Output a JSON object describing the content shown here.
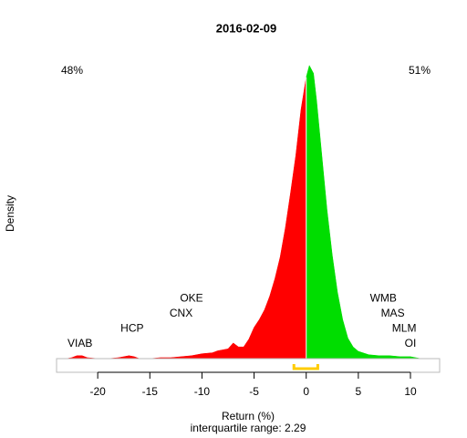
{
  "chart_data": {
    "type": "density",
    "title": "2016-02-09",
    "x_label": "Return (%)",
    "y_label": "Density",
    "subtitle": "interquartile range: 2.29",
    "xlim": [
      -23.95,
      12.8
    ],
    "ylim": [
      -0.014,
      0.311
    ],
    "xticks": [
      -20,
      -15,
      -10,
      -5,
      0,
      5,
      10
    ],
    "series": [
      {
        "color": "#ff0000",
        "x": [
          -23,
          -22.5,
          -22,
          -21.5,
          -21,
          -20,
          -19,
          -18,
          -17.5,
          -17,
          -16.5,
          -16,
          -15,
          -14,
          -13,
          -12,
          -11,
          -10,
          -9,
          -8.5,
          -8,
          -7.5,
          -7,
          -6.5,
          -6,
          -5.5,
          -5,
          -4.5,
          -4,
          -3.5,
          -3,
          -2.5,
          -2,
          -1.5,
          -1,
          -0.5,
          0
        ],
        "values": [
          0,
          0.001,
          0.003,
          0.003,
          0.001,
          0,
          0,
          0.001,
          0.002,
          0.003,
          0.002,
          0,
          0,
          0.001,
          0.001,
          0.002,
          0.003,
          0.005,
          0.006,
          0.008,
          0.009,
          0.01,
          0.016,
          0.012,
          0.012,
          0.02,
          0.032,
          0.04,
          0.05,
          0.064,
          0.082,
          0.104,
          0.134,
          0.17,
          0.208,
          0.255,
          0.288
        ]
      },
      {
        "color": "#00dd00",
        "x": [
          0,
          0.3,
          0.7,
          1,
          1.5,
          2,
          2.5,
          3,
          3.5,
          4,
          4.5,
          5,
          6,
          7,
          8,
          9,
          10,
          10.5,
          11
        ],
        "values": [
          0.288,
          0.3,
          0.292,
          0.264,
          0.208,
          0.152,
          0.106,
          0.068,
          0.04,
          0.021,
          0.012,
          0.0075,
          0.004,
          0.003,
          0.003,
          0.002,
          0.002,
          0.001,
          0
        ]
      }
    ],
    "shares": {
      "values": [
        48,
        51
      ],
      "value_labels": [
        "48%",
        "51%"
      ]
    },
    "quartiles": [
      -1.18,
      1.11
    ],
    "annotations": [
      {
        "text": "VIAB",
        "x": -21.7
      },
      {
        "text": "HCP",
        "x": -16.7
      },
      {
        "text": "CNX",
        "x": -12.0
      },
      {
        "text": "OKE",
        "x": -11.0
      },
      {
        "text": "WMB",
        "x": 7.4
      },
      {
        "text": "MAS",
        "x": 8.3
      },
      {
        "text": "MLM",
        "x": 9.4
      },
      {
        "text": "OI",
        "x": 10.0
      }
    ]
  }
}
